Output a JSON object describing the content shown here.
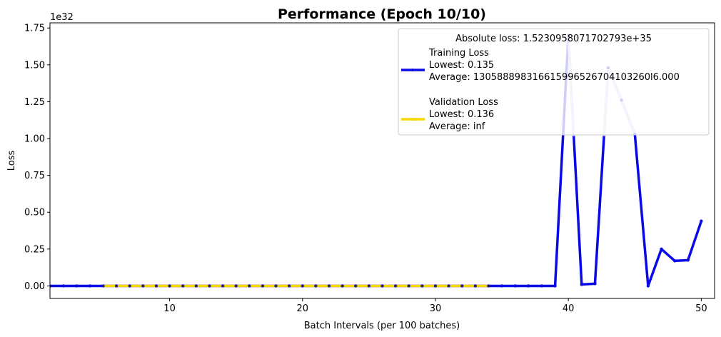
{
  "chart_data": {
    "type": "line",
    "title": "Performance (Epoch 10/10)",
    "xlabel": "Batch Intervals (per 100 batches)",
    "ylabel": "Loss",
    "y_offset_label": "1e32",
    "y_scale": 1e+32,
    "xlim": [
      1,
      51
    ],
    "ylim": [
      -0.085,
      1.785
    ],
    "x_ticks": [
      10,
      20,
      30,
      40,
      50
    ],
    "y_ticks": [
      0.0,
      0.25,
      0.5,
      0.75,
      1.0,
      1.25,
      1.5,
      1.75
    ],
    "y_tick_labels": [
      "0.00",
      "0.25",
      "0.50",
      "0.75",
      "1.00",
      "1.25",
      "1.50",
      "1.75"
    ],
    "grid": false,
    "legend": {
      "placement": "top-right",
      "title": "Absolute loss: 1.5230958071702793e+35",
      "entries": [
        {
          "lines": [
            "Training Loss",
            "Lowest: 0.135",
            "Average: 130588898316615996526704103260l6.000"
          ]
        },
        {
          "lines": [
            "Validation Loss",
            "Lowest: 0.136",
            "Average: inf"
          ]
        }
      ]
    },
    "series": [
      {
        "name": "Training Loss",
        "color": "#0a0ae6",
        "faded_color": "#c8c8f5",
        "x": [
          1,
          2,
          3,
          4,
          5,
          6,
          7,
          8,
          9,
          10,
          11,
          12,
          13,
          14,
          15,
          16,
          17,
          18,
          19,
          20,
          21,
          22,
          23,
          24,
          25,
          26,
          27,
          28,
          29,
          30,
          31,
          32,
          33,
          34,
          35,
          36,
          37,
          38,
          39,
          40,
          41,
          42,
          43,
          44,
          45,
          46,
          47,
          48,
          49,
          50
        ],
        "y": [
          0,
          0,
          0,
          0,
          0,
          0,
          0,
          0,
          0,
          0,
          0,
          0,
          0,
          0,
          0,
          0,
          0,
          0,
          0,
          0,
          0,
          0,
          0,
          0,
          0,
          0,
          0,
          0,
          0,
          0,
          0,
          0,
          0,
          0,
          0,
          0,
          0,
          0,
          0,
          1.7,
          0.01,
          0.015,
          1.48,
          1.26,
          1.03,
          0,
          0.25,
          0.17,
          0.175,
          0.44
        ]
      },
      {
        "name": "Validation Loss",
        "color": "#f5d800",
        "x": [
          5,
          6,
          7,
          8,
          9,
          10,
          11,
          12,
          13,
          14,
          15,
          16,
          17,
          18,
          19,
          20,
          21,
          22,
          23,
          24,
          25,
          26,
          27,
          28,
          29,
          30,
          31,
          32,
          33,
          34
        ],
        "y": [
          0,
          0,
          0,
          0,
          0,
          0,
          0,
          0,
          0,
          0,
          0,
          0,
          0,
          0,
          0,
          0,
          0,
          0,
          0,
          0,
          0,
          0,
          0,
          0,
          0,
          0,
          0,
          0,
          0,
          0
        ]
      }
    ]
  }
}
